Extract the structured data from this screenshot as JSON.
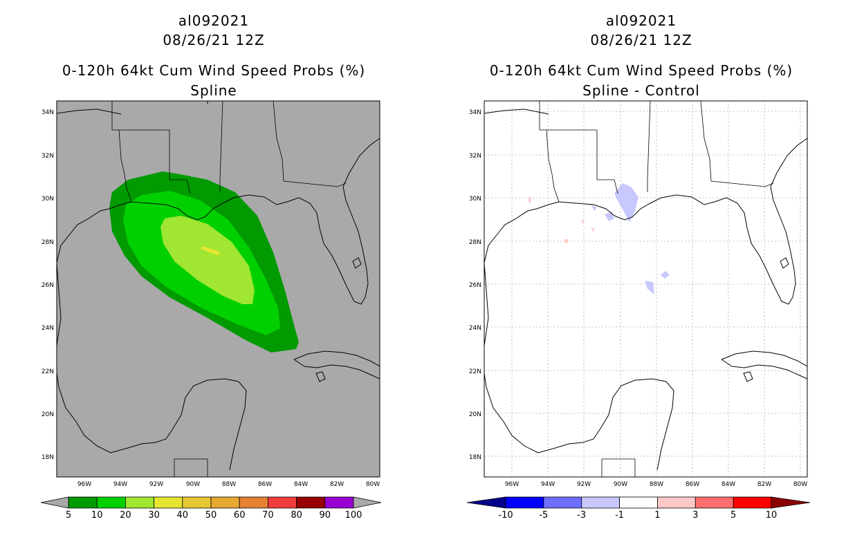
{
  "panels": [
    {
      "id": "left",
      "storm_id": "al092021",
      "datetime": "08/26/21 12Z",
      "title": "0-120h 64kt Cum Wind Speed Probs (%)",
      "subtitle": "Spline",
      "background": "#a9a9a9",
      "colorbar": {
        "colors": [
          "#019a00",
          "#00d000",
          "#a0e632",
          "#e6e632",
          "#e6c832",
          "#e6a832",
          "#e68232",
          "#f03c3c",
          "#960000",
          "#9600d2"
        ],
        "end_left": "#a9a9a9",
        "end_right": "#a9a9a9",
        "labels": [
          "5",
          "10",
          "20",
          "30",
          "40",
          "50",
          "60",
          "70",
          "80",
          "90",
          "100"
        ]
      }
    },
    {
      "id": "right",
      "storm_id": "al092021",
      "datetime": "08/26/21 12Z",
      "title": "0-120h 64kt Cum Wind Speed Probs (%)",
      "subtitle": "Spline - Control",
      "background": "#ffffff",
      "colorbar": {
        "colors": [
          "#0000ff",
          "#6e6eff",
          "#c8c8ff",
          "#ffffff",
          "#ffc8c8",
          "#ff6e6e",
          "#ff0000"
        ],
        "end_left": "#00008c",
        "end_right": "#8c0000",
        "labels": [
          "-10",
          "-5",
          "-3",
          "-1",
          "1",
          "3",
          "5",
          "10"
        ]
      }
    }
  ],
  "axes": {
    "lon_ticks": [
      "96W",
      "94W",
      "92W",
      "90W",
      "88W",
      "86W",
      "84W",
      "82W",
      "80W"
    ],
    "lat_ticks": [
      "34N",
      "32N",
      "30N",
      "28N",
      "26N",
      "24N",
      "22N",
      "20N",
      "18N"
    ]
  },
  "map_region": "Gulf of Mexico",
  "prob_contours_percent": [
    5,
    10,
    20,
    30
  ],
  "diff_features_percent": [
    -3,
    1
  ]
}
